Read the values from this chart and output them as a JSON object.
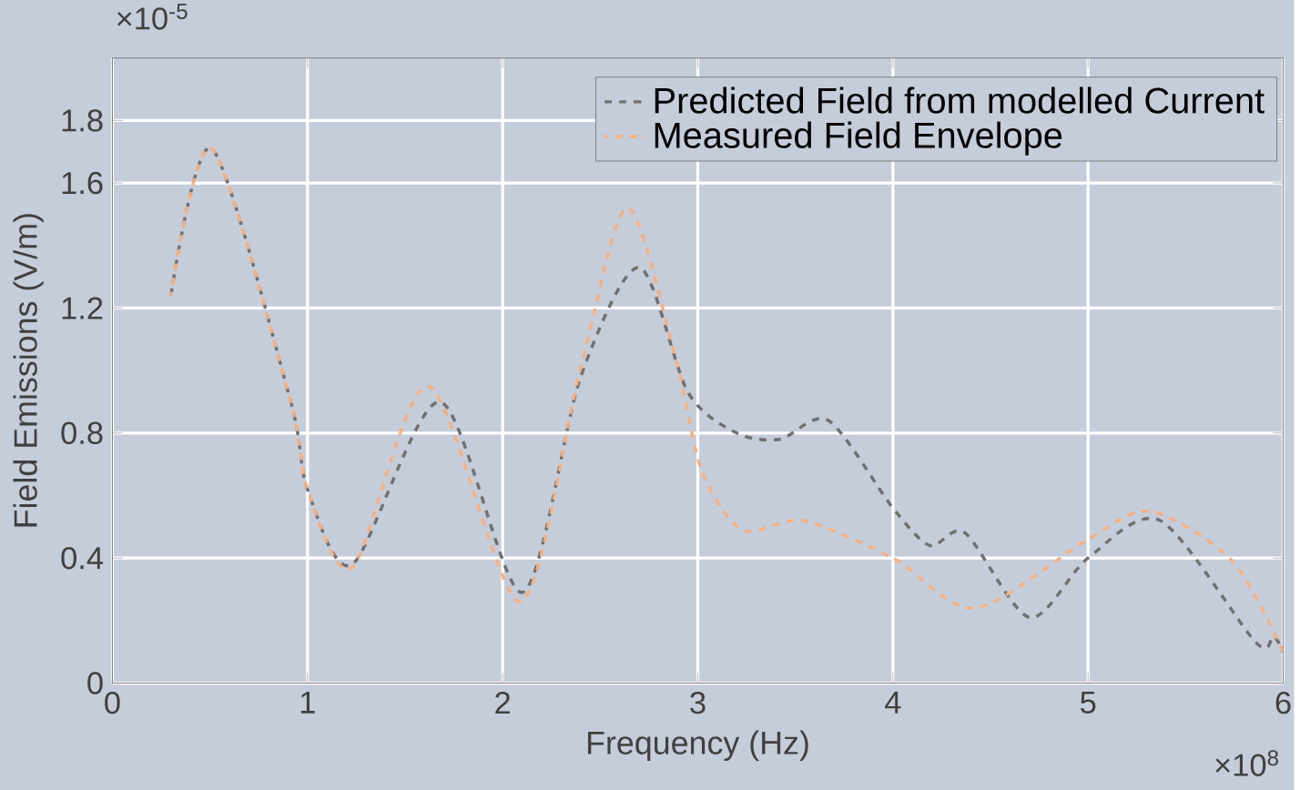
{
  "chart_data": {
    "type": "line",
    "xlabel": "Frequency (Hz)",
    "ylabel": "Field Emissions (V/m)",
    "annotations": [
      "×10$^{-5}$",
      "×10$^{8}$"
    ],
    "xlim": [
      0,
      6
    ],
    "xticks": [
      0,
      1,
      2,
      3,
      4,
      5,
      6
    ],
    "ylim": [
      0,
      2
    ],
    "yticks": [
      0,
      0.4,
      0.8,
      1.2,
      1.6,
      1.8
    ],
    "grid": true,
    "legend": "top right",
    "marker": "none",
    "series": [
      {
        "name": "Predicted Field from modelled Current",
        "color": "#707070",
        "line_style": "dashed",
        "x": [
          0.3,
          0.51,
          0.91,
          1.0,
          1.23,
          1.68,
          2.1,
          2.4,
          2.7,
          2.95,
          3.2,
          3.42,
          3.67,
          4.0,
          4.19,
          4.37,
          4.7,
          5.0,
          5.37,
          5.86,
          5.95,
          6.0
        ],
        "values": [
          1.24,
          1.71,
          0.91,
          0.62,
          0.38,
          0.9,
          0.29,
          0.98,
          1.33,
          0.93,
          0.8,
          0.78,
          0.84,
          0.56,
          0.44,
          0.48,
          0.21,
          0.4,
          0.52,
          0.13,
          0.15,
          0.1
        ]
      },
      {
        "name": "Measured Field Envelope",
        "color": "#f4b183",
        "line_style": "dashed",
        "x": [
          0.3,
          0.51,
          0.91,
          1.0,
          1.23,
          1.62,
          2.09,
          2.4,
          2.64,
          2.89,
          3.02,
          3.23,
          3.54,
          4.0,
          4.42,
          5.0,
          5.32,
          5.74,
          6.0
        ],
        "values": [
          1.24,
          1.71,
          0.91,
          0.62,
          0.37,
          0.95,
          0.26,
          1.01,
          1.52,
          1.03,
          0.68,
          0.49,
          0.52,
          0.4,
          0.24,
          0.46,
          0.55,
          0.39,
          0.1
        ]
      }
    ]
  }
}
